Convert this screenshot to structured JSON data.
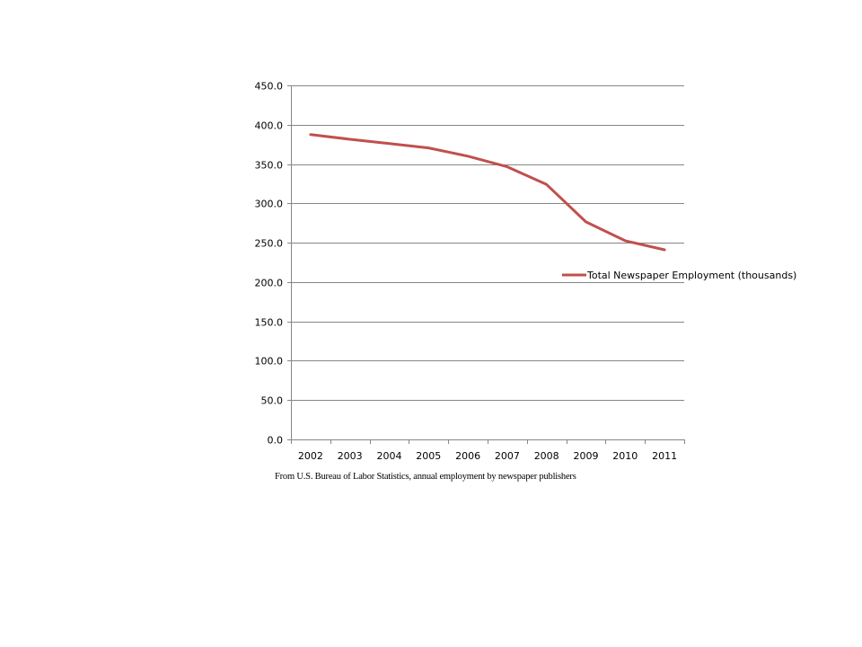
{
  "chart_data": {
    "type": "line",
    "title": "",
    "xlabel": "",
    "ylabel": "",
    "categories": [
      "2002",
      "2003",
      "2004",
      "2005",
      "2006",
      "2007",
      "2008",
      "2009",
      "2010",
      "2011"
    ],
    "series": [
      {
        "name": "Total Newspaper Employment (thousands)",
        "color": "#c0504d",
        "values": [
          387.5,
          381.5,
          376.0,
          370.5,
          360.0,
          346.5,
          324.0,
          276.5,
          252.5,
          241.0
        ]
      }
    ],
    "ylim": [
      0,
      450
    ],
    "yticks": [
      "0.0",
      "50.0",
      "100.0",
      "150.0",
      "200.0",
      "250.0",
      "300.0",
      "350.0",
      "400.0",
      "450.0"
    ],
    "ytick_values": [
      0,
      50,
      100,
      150,
      200,
      250,
      300,
      350,
      400,
      450
    ],
    "grid": true,
    "legend_position": "right",
    "gridline_color": "#868686"
  },
  "caption": "From U.S. Bureau of Labor Statistics, annual employment by newspaper publishers"
}
